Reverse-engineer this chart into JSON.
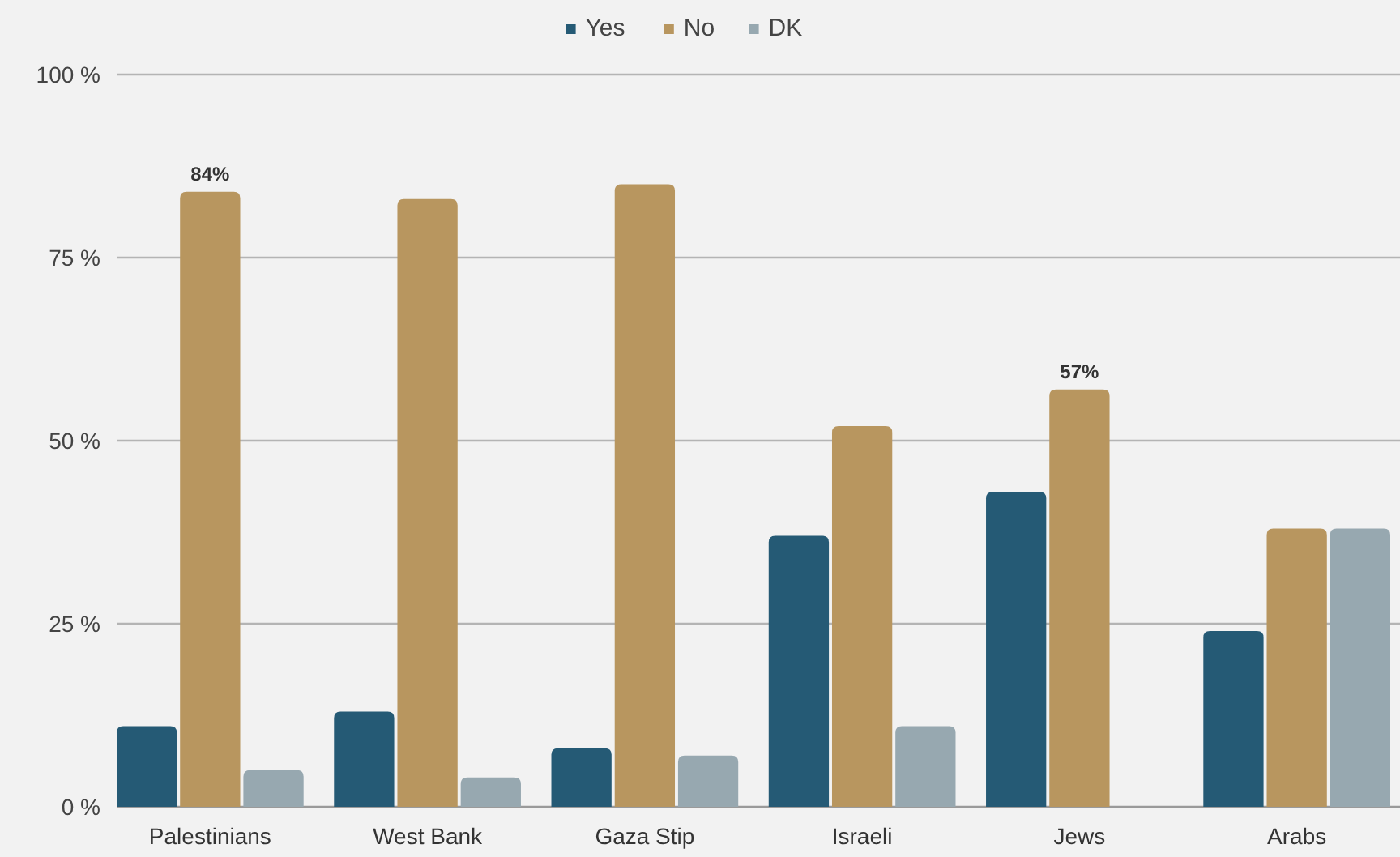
{
  "chart_data": {
    "type": "bar",
    "categories": [
      "Palestinians",
      "West Bank",
      "Gaza Stip",
      "Israeli",
      "Jews",
      "Arabs"
    ],
    "series": [
      {
        "name": "Yes",
        "color": "#255a75",
        "values": [
          11,
          13,
          8,
          37,
          43,
          24
        ]
      },
      {
        "name": "No",
        "color": "#b8965f",
        "values": [
          84,
          83,
          85,
          52,
          57,
          38
        ],
        "value_labels": [
          "84%",
          null,
          null,
          null,
          "57%",
          null
        ]
      },
      {
        "name": "DK",
        "color": "#97a8b0",
        "values": [
          5,
          4,
          7,
          11,
          null,
          38
        ]
      }
    ],
    "ylim": [
      0,
      100
    ],
    "yticks": [
      {
        "value": 0,
        "label": "0 %"
      },
      {
        "value": 25,
        "label": "25 %"
      },
      {
        "value": 50,
        "label": "50 %"
      },
      {
        "value": 75,
        "label": "75 %"
      },
      {
        "value": 100,
        "label": "100 %"
      }
    ],
    "grid": "y",
    "legend": "top"
  }
}
